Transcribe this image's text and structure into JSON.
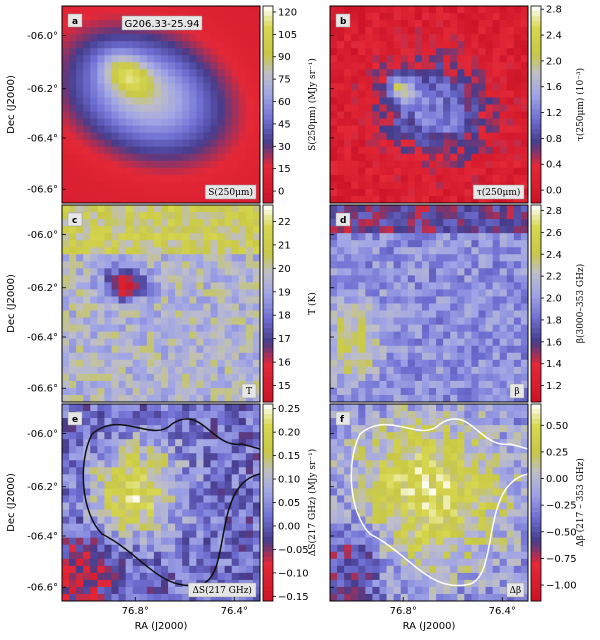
{
  "chart_data": {
    "type": "heatmap",
    "panels": [
      {
        "letter": "a",
        "title": "G206.33-25.94",
        "corner_label": "S(250μm)",
        "cbar_label": "S(250μm) (MJy sr⁻¹)",
        "cbar_ticks": [
          "120",
          "105",
          "90",
          "75",
          "60",
          "45",
          "30",
          "15",
          "0"
        ],
        "cbar_range": [
          -8,
          124
        ],
        "colormap": "red-blue-yellow-white"
      },
      {
        "letter": "b",
        "title": "",
        "corner_label": "τ(250μm)",
        "cbar_label": "τ(250μm) (10⁻³)",
        "cbar_ticks": [
          "2.8",
          "2.4",
          "2.0",
          "1.6",
          "1.2",
          "0.8",
          "0.4",
          "0.0"
        ],
        "cbar_range": [
          -0.2,
          2.85
        ],
        "colormap": "red-blue-yellow-white"
      },
      {
        "letter": "c",
        "title": "",
        "corner_label": "T",
        "cbar_label": "T (K)",
        "cbar_ticks": [
          "22",
          "21",
          "20",
          "19",
          "18",
          "17",
          "16",
          "15"
        ],
        "cbar_range": [
          14.3,
          22.7
        ],
        "colormap": "red-blue-yellow-white"
      },
      {
        "letter": "d",
        "title": "",
        "corner_label": "β",
        "cbar_label": "β(3000–353 GHz)",
        "cbar_ticks": [
          "2.8",
          "2.6",
          "2.4",
          "2.2",
          "2.0",
          "1.8",
          "1.6",
          "1.4",
          "1.2"
        ],
        "cbar_range": [
          1.05,
          2.85
        ],
        "colormap": "red-blue-yellow-white"
      },
      {
        "letter": "e",
        "title": "",
        "corner_label": "ΔS(217 GHz)",
        "cbar_label": "ΔS(217 GHz) (MJy sr⁻¹)",
        "cbar_ticks": [
          "0.25",
          "0.20",
          "0.15",
          "0.10",
          "0.05",
          "0.00",
          "−0.05",
          "−0.10",
          "−0.15"
        ],
        "cbar_range": [
          -0.16,
          0.26
        ],
        "colormap": "red-blue-yellow-white"
      },
      {
        "letter": "f",
        "title": "",
        "corner_label": "Δβ",
        "cbar_label": "Δβ (217 – 353 GHz)",
        "cbar_ticks": [
          "0.50",
          "0.25",
          "0.00",
          "−0.25",
          "−0.50",
          "−0.75",
          "−1.00"
        ],
        "cbar_range": [
          -1.15,
          0.7
        ],
        "colormap": "red-blue-yellow-white"
      }
    ],
    "y_ticks": [
      "-06.0°",
      "-06.2°",
      "-06.4°",
      "-06.6°"
    ],
    "x_ticks": [
      "76.8°",
      "76.4°"
    ],
    "ylabel": "Dec (J2000)",
    "xlabel": "RA (J2000)"
  }
}
